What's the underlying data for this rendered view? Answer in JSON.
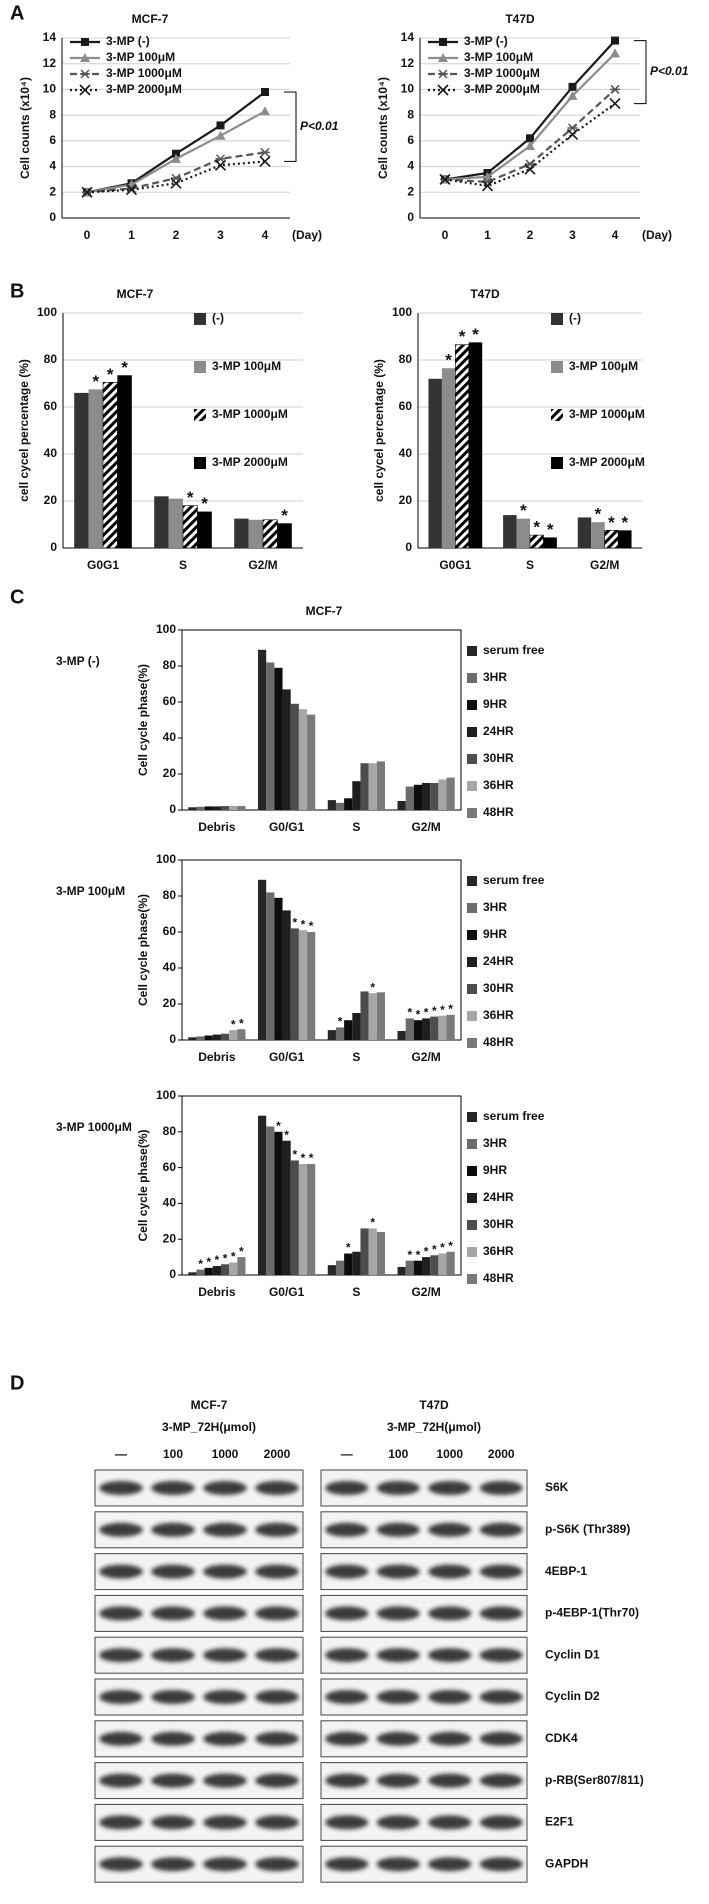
{
  "panel_labels": [
    "A",
    "B",
    "C",
    "D"
  ],
  "chart_data": [
    {
      "type": "line",
      "title": "MCF-7",
      "ylabel": "Cell counts (x10⁴)",
      "xlabel": "(Day)",
      "annotation": "P<0.01",
      "x": [
        0,
        1,
        2,
        3,
        4
      ],
      "xlim": [
        0,
        4
      ],
      "xticks": [
        0,
        1,
        2,
        3,
        4
      ],
      "ylim": [
        0,
        14
      ],
      "yticks": [
        0,
        2,
        4,
        6,
        8,
        10,
        12,
        14
      ],
      "grid": true,
      "legend": "upper left",
      "series": [
        {
          "name": "3-MP (-)",
          "color": "#1a1a1a",
          "marker": "square",
          "dash": "solid",
          "values": [
            2,
            2.7,
            5,
            7.2,
            9.8
          ]
        },
        {
          "name": "3-MP 100μM",
          "color": "#8c8c8c",
          "marker": "triangle",
          "dash": "solid",
          "values": [
            2,
            2.6,
            4.6,
            6.4,
            8.3
          ]
        },
        {
          "name": "3-MP 1000μM",
          "color": "#555555",
          "marker": "star",
          "dash": "dash",
          "values": [
            2,
            2.3,
            3.1,
            4.6,
            5.1
          ]
        },
        {
          "name": "3-MP 2000μM",
          "color": "#1a1a1a",
          "marker": "x",
          "dash": "dot",
          "values": [
            2,
            2.2,
            2.7,
            4.1,
            4.4
          ]
        }
      ]
    },
    {
      "type": "line",
      "title": "T47D",
      "ylabel": "Cell counts (x10⁴)",
      "xlabel": "(Day)",
      "annotation": "P<0.01",
      "x": [
        0,
        1,
        2,
        3,
        4
      ],
      "xlim": [
        0,
        4
      ],
      "xticks": [
        0,
        1,
        2,
        3,
        4
      ],
      "ylim": [
        0,
        14
      ],
      "yticks": [
        0,
        2,
        4,
        6,
        8,
        10,
        12,
        14
      ],
      "grid": true,
      "legend": "upper left",
      "series": [
        {
          "name": "3-MP (-)",
          "color": "#1a1a1a",
          "marker": "square",
          "dash": "solid",
          "values": [
            3,
            3.5,
            6.2,
            10.2,
            13.8
          ]
        },
        {
          "name": "3-MP 100μM",
          "color": "#8c8c8c",
          "marker": "triangle",
          "dash": "solid",
          "values": [
            3,
            3.2,
            5.6,
            9.5,
            12.8
          ]
        },
        {
          "name": "3-MP 1000μM",
          "color": "#555555",
          "marker": "star",
          "dash": "dash",
          "values": [
            3,
            2.8,
            4.2,
            7,
            10
          ]
        },
        {
          "name": "3-MP 2000μM",
          "color": "#1a1a1a",
          "marker": "x",
          "dash": "dot",
          "values": [
            3,
            2.5,
            3.8,
            6.5,
            8.9
          ]
        }
      ]
    },
    {
      "type": "bar",
      "title": "MCF-7",
      "ylabel": "cell cycel percentage (%)",
      "categories": [
        "G0G1",
        "S",
        "G2/M"
      ],
      "ylim": [
        0,
        100
      ],
      "yticks": [
        0,
        20,
        40,
        60,
        80,
        100
      ],
      "grid": true,
      "legend": "right",
      "series": [
        {
          "name": "(-)",
          "color": "#333333",
          "values": [
            66,
            22,
            12.5
          ]
        },
        {
          "name": "3-MP 100μM",
          "color": "#8c8c8c",
          "values": [
            67.5,
            21,
            12
          ],
          "significance": [
            "*",
            null,
            null
          ]
        },
        {
          "name": "3-MP 1000μM",
          "color": "#000000",
          "hatch": true,
          "values": [
            70.5,
            18,
            12
          ],
          "significance": [
            "*",
            "*",
            null
          ]
        },
        {
          "name": "3-MP 2000μM",
          "color": "#000000",
          "values": [
            73.5,
            15.5,
            10.5
          ],
          "significance": [
            "*",
            "*",
            "*"
          ]
        }
      ]
    },
    {
      "type": "bar",
      "title": "T47D",
      "ylabel": "cell cycel percentage (%)",
      "categories": [
        "G0G1",
        "S",
        "G2/M"
      ],
      "ylim": [
        0,
        100
      ],
      "yticks": [
        0,
        20,
        40,
        60,
        80,
        100
      ],
      "grid": true,
      "legend": "right",
      "series": [
        {
          "name": "(-)",
          "color": "#333333",
          "values": [
            72,
            14,
            13
          ]
        },
        {
          "name": "3-MP 100μM",
          "color": "#8c8c8c",
          "values": [
            76.5,
            12.5,
            11
          ],
          "significance": [
            "*",
            "*",
            "*"
          ]
        },
        {
          "name": "3-MP 1000μM",
          "color": "#000000",
          "hatch": true,
          "values": [
            86.5,
            5.5,
            7.5
          ],
          "significance": [
            "*",
            "*",
            "*"
          ]
        },
        {
          "name": "3-MP 2000μM",
          "color": "#000000",
          "values": [
            87.5,
            4.5,
            7.5
          ],
          "significance": [
            "*",
            "*",
            "*"
          ]
        }
      ]
    },
    {
      "type": "bar",
      "title": "MCF-7",
      "label": "3-MP (-)",
      "ylabel": "Cell cycle phase(%)",
      "categories": [
        "Debris",
        "G0/G1",
        "S",
        "G2/M"
      ],
      "ylim": [
        0,
        100
      ],
      "yticks": [
        0,
        20,
        40,
        60,
        80,
        100
      ],
      "grid": false,
      "legend": "right",
      "series": [
        {
          "name": "serum free",
          "color": "#262626",
          "values": [
            1.5,
            89,
            5.5,
            5
          ]
        },
        {
          "name": "3HR",
          "color": "#6b6b6b",
          "values": [
            1.8,
            82,
            4,
            13
          ]
        },
        {
          "name": "9HR",
          "color": "#0d0d0d",
          "values": [
            2,
            79,
            6.5,
            14
          ]
        },
        {
          "name": "24HR",
          "color": "#1f1f1f",
          "values": [
            2,
            67,
            16,
            15
          ]
        },
        {
          "name": "30HR",
          "color": "#4d4d4d",
          "values": [
            2.2,
            59,
            26,
            15
          ]
        },
        {
          "name": "36HR",
          "color": "#a6a6a6",
          "values": [
            2.3,
            56,
            26,
            17
          ]
        },
        {
          "name": "48HR",
          "color": "#7a7a7a",
          "values": [
            2.2,
            53,
            27,
            18
          ]
        }
      ]
    },
    {
      "type": "bar",
      "label": "3-MP 100μM",
      "ylabel": "Cell cycle phase(%)",
      "categories": [
        "Debris",
        "G0/G1",
        "S",
        "G2/M"
      ],
      "ylim": [
        0,
        100
      ],
      "yticks": [
        0,
        20,
        40,
        60,
        80,
        100
      ],
      "grid": false,
      "legend": "right",
      "series": [
        {
          "name": "serum free",
          "color": "#262626",
          "values": [
            1.5,
            89,
            5.5,
            5
          ]
        },
        {
          "name": "3HR",
          "color": "#6b6b6b",
          "values": [
            2,
            82,
            7,
            12
          ],
          "significance": [
            null,
            null,
            "*",
            "*"
          ]
        },
        {
          "name": "9HR",
          "color": "#0d0d0d",
          "values": [
            2.5,
            79,
            11,
            11
          ],
          "significance": [
            null,
            null,
            null,
            "*"
          ]
        },
        {
          "name": "24HR",
          "color": "#1f1f1f",
          "values": [
            3,
            72,
            15,
            12
          ],
          "significance": [
            null,
            null,
            null,
            "*"
          ]
        },
        {
          "name": "30HR",
          "color": "#4d4d4d",
          "values": [
            3.5,
            62,
            27,
            13
          ],
          "significance": [
            null,
            "*",
            null,
            "*"
          ]
        },
        {
          "name": "36HR",
          "color": "#a6a6a6",
          "values": [
            5.5,
            61,
            26,
            13.5
          ],
          "significance": [
            "*",
            "*",
            "*",
            "*"
          ]
        },
        {
          "name": "48HR",
          "color": "#7a7a7a",
          "values": [
            6,
            60,
            26.5,
            14
          ],
          "significance": [
            "*",
            "*",
            null,
            "*"
          ]
        }
      ]
    },
    {
      "type": "bar",
      "label": "3-MP 1000μM",
      "ylabel": "Cell cycle phase(%)",
      "categories": [
        "Debris",
        "G0/G1",
        "S",
        "G2/M"
      ],
      "ylim": [
        0,
        100
      ],
      "yticks": [
        0,
        20,
        40,
        60,
        80,
        100
      ],
      "grid": false,
      "legend": "right",
      "series": [
        {
          "name": "serum free",
          "color": "#262626",
          "values": [
            1.5,
            89,
            5.5,
            4.5
          ]
        },
        {
          "name": "3HR",
          "color": "#6b6b6b",
          "values": [
            3,
            83,
            8,
            8
          ],
          "significance": [
            "*",
            null,
            null,
            "*"
          ]
        },
        {
          "name": "9HR",
          "color": "#0d0d0d",
          "values": [
            4,
            80,
            12,
            8
          ],
          "significance": [
            "*",
            "*",
            "*",
            "*"
          ]
        },
        {
          "name": "24HR",
          "color": "#1f1f1f",
          "values": [
            5,
            75,
            13,
            10
          ],
          "significance": [
            "*",
            "*",
            null,
            "*"
          ]
        },
        {
          "name": "30HR",
          "color": "#4d4d4d",
          "values": [
            6,
            64,
            26,
            11
          ],
          "significance": [
            "*",
            "*",
            null,
            "*"
          ]
        },
        {
          "name": "36HR",
          "color": "#a6a6a6",
          "values": [
            7,
            62,
            26,
            12
          ],
          "significance": [
            "*",
            "*",
            "*",
            "*"
          ]
        },
        {
          "name": "48HR",
          "color": "#7a7a7a",
          "values": [
            10,
            62,
            24,
            13
          ],
          "significance": [
            "*",
            "*",
            null,
            "*"
          ]
        }
      ]
    }
  ],
  "western_blot": {
    "groups": [
      {
        "cell_line": "MCF-7",
        "treatment": "3-MP_72H(μmol)",
        "lanes": [
          "—",
          "100",
          "1000",
          "2000"
        ]
      },
      {
        "cell_line": "T47D",
        "treatment": "3-MP_72H(μmol)",
        "lanes": [
          "—",
          "100",
          "1000",
          "2000"
        ]
      }
    ],
    "proteins": [
      "S6K",
      "p-S6K (Thr389)",
      "4EBP-1",
      "p-4EBP-1(Thr70)",
      "Cyclin D1",
      "Cyclin D2",
      "CDK4",
      "p-RB(Ser807/811)",
      "E2F1",
      "GAPDH"
    ]
  }
}
